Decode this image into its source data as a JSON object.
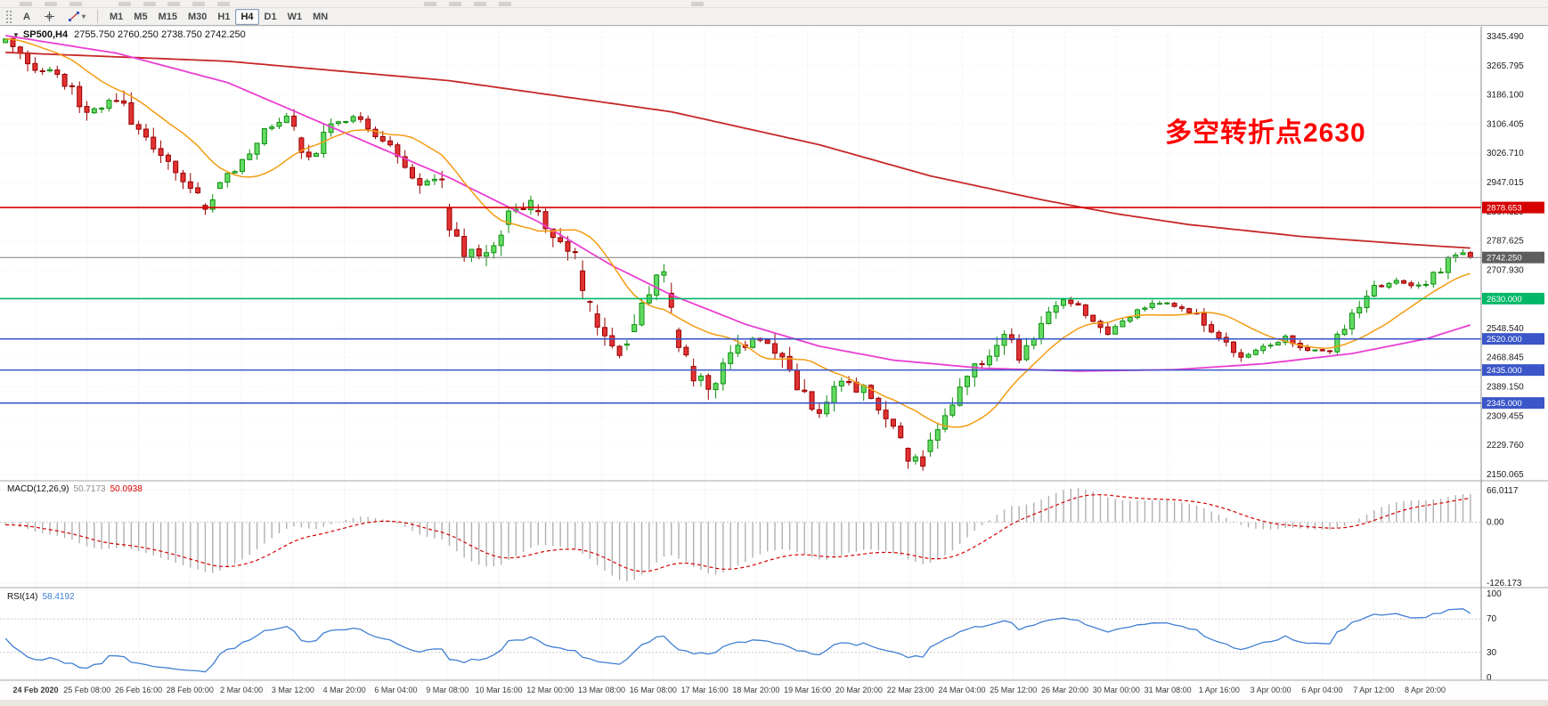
{
  "toolbar": {
    "font_button": "A",
    "dropdown_caret": "▾",
    "timeframes": [
      "M1",
      "M5",
      "M15",
      "M30",
      "H1",
      "H4",
      "D1",
      "W1",
      "MN"
    ],
    "active_timeframe": "H4"
  },
  "chart": {
    "collapse_triangle": "▼",
    "title": "SP500,H4",
    "ohlc": "2755.750 2760.250 2738.750 2742.250",
    "annotation": {
      "text": "多空转折点2630",
      "color": "#FF0000"
    },
    "price_axis": [
      "3345.490",
      "3265.795",
      "3186.100",
      "3106.405",
      "3026.710",
      "2947.015",
      "2867.320",
      "2787.625",
      "2707.930",
      "2628.235",
      "2548.540",
      "2468.845",
      "2389.150",
      "2309.455",
      "2229.760",
      "2150.065"
    ],
    "hlines": [
      {
        "price": 2878.653,
        "label": "2878.653",
        "color": "#D60000"
      },
      {
        "price": 2630.0,
        "label": "2630.000",
        "color": "#00B868"
      },
      {
        "price": 2520.0,
        "label": "2520.000",
        "color": "#3A56C8"
      },
      {
        "price": 2435.0,
        "label": "2435.000",
        "color": "#3A56C8"
      },
      {
        "price": 2345.0,
        "label": "2345.000",
        "color": "#3A56C8"
      }
    ],
    "current_price": {
      "value": 2742.25,
      "label": "2742.250",
      "line_color": "#808080",
      "tag_color": "#5E5E5E"
    },
    "time_axis": [
      "24 Feb 2020",
      "25 Feb 08:00",
      "26 Feb 16:00",
      "28 Feb 00:00",
      "2 Mar 04:00",
      "3 Mar 12:00",
      "4 Mar 20:00",
      "6 Mar 04:00",
      "9 Mar 08:00",
      "10 Mar 16:00",
      "12 Mar 00:00",
      "13 Mar 08:00",
      "16 Mar 08:00",
      "17 Mar 16:00",
      "18 Mar 20:00",
      "19 Mar 16:00",
      "20 Mar 20:00",
      "22 Mar 23:00",
      "24 Mar 04:00",
      "25 Mar 12:00",
      "26 Mar 20:00",
      "30 Mar 00:00",
      "31 Mar 08:00",
      "1 Apr 16:00",
      "3 Apr 00:00",
      "6 Apr 04:00",
      "7 Apr 12:00",
      "8 Apr 20:00"
    ]
  },
  "macd": {
    "label": "MACD(12,26,9)",
    "main_value": "50.7173",
    "signal_value": "50.0938",
    "axis": [
      "66.0117",
      "0.00",
      "-126.173"
    ]
  },
  "rsi": {
    "label": "RSI(14)",
    "value": "58.4192",
    "axis": [
      "100",
      "70",
      "30",
      "0"
    ],
    "levels": [
      70,
      30
    ]
  },
  "chart_data": {
    "type": "candlestick",
    "symbol": "SP500",
    "timeframe": "H4",
    "bars": 199,
    "seed": 20200408,
    "price_range": [
      2140,
      3365
    ],
    "last_candle": {
      "open": 2755.75,
      "high": 2760.25,
      "low": 2738.75,
      "close": 2742.25
    },
    "close_waypoints": [
      [
        0,
        3335
      ],
      [
        2,
        3305
      ],
      [
        5,
        3245
      ],
      [
        7,
        3255
      ],
      [
        11,
        3135
      ],
      [
        13,
        3160
      ],
      [
        15,
        3182
      ],
      [
        17,
        3120
      ],
      [
        20,
        3045
      ],
      [
        23,
        2980
      ],
      [
        26,
        2900
      ],
      [
        27,
        2862
      ],
      [
        29,
        2952
      ],
      [
        32,
        3005
      ],
      [
        35,
        3088
      ],
      [
        38,
        3132
      ],
      [
        41,
        3005
      ],
      [
        44,
        3098
      ],
      [
        47,
        3128
      ],
      [
        50,
        3078
      ],
      [
        53,
        3022
      ],
      [
        56,
        2948
      ],
      [
        59,
        2970
      ],
      [
        60,
        2825
      ],
      [
        62,
        2762
      ],
      [
        65,
        2747
      ],
      [
        68,
        2852
      ],
      [
        71,
        2880
      ],
      [
        74,
        2798
      ],
      [
        77,
        2742
      ],
      [
        79,
        2602
      ],
      [
        81,
        2532
      ],
      [
        83,
        2481
      ],
      [
        85,
        2562
      ],
      [
        88,
        2684
      ],
      [
        89,
        2709
      ],
      [
        91,
        2502
      ],
      [
        93,
        2424
      ],
      [
        95,
        2388
      ],
      [
        98,
        2462
      ],
      [
        101,
        2528
      ],
      [
        104,
        2478
      ],
      [
        107,
        2400
      ],
      [
        110,
        2322
      ],
      [
        113,
        2408
      ],
      [
        116,
        2378
      ],
      [
        119,
        2306
      ],
      [
        121,
        2242
      ],
      [
        122,
        2202
      ],
      [
        124,
        2192
      ],
      [
        125,
        2239
      ],
      [
        128,
        2342
      ],
      [
        131,
        2448
      ],
      [
        134,
        2492
      ],
      [
        135,
        2538
      ],
      [
        137,
        2476
      ],
      [
        140,
        2558
      ],
      [
        143,
        2628
      ],
      [
        146,
        2592
      ],
      [
        149,
        2542
      ],
      [
        152,
        2582
      ],
      [
        155,
        2624
      ],
      [
        158,
        2610
      ],
      [
        161,
        2586
      ],
      [
        164,
        2522
      ],
      [
        167,
        2472
      ],
      [
        170,
        2502
      ],
      [
        173,
        2524
      ],
      [
        176,
        2492
      ],
      [
        179,
        2489
      ],
      [
        182,
        2582
      ],
      [
        185,
        2660
      ],
      [
        188,
        2678
      ],
      [
        191,
        2660
      ],
      [
        194,
        2712
      ],
      [
        196,
        2752
      ],
      [
        197,
        2758
      ],
      [
        198,
        2742.25
      ]
    ],
    "overlays": [
      {
        "name": "ma-slow-red",
        "color": "#C62828",
        "points": [
          [
            0,
            3302
          ],
          [
            30,
            3278
          ],
          [
            60,
            3225
          ],
          [
            90,
            3140
          ],
          [
            110,
            3050
          ],
          [
            125,
            2965
          ],
          [
            140,
            2900
          ],
          [
            150,
            2862
          ],
          [
            160,
            2832
          ],
          [
            175,
            2800
          ],
          [
            190,
            2778
          ],
          [
            198,
            2768
          ]
        ]
      },
      {
        "name": "ma-medium-magenta",
        "color": "#E93ED2",
        "points": [
          [
            0,
            3348
          ],
          [
            15,
            3300
          ],
          [
            30,
            3220
          ],
          [
            45,
            3090
          ],
          [
            60,
            2960
          ],
          [
            72,
            2840
          ],
          [
            82,
            2720
          ],
          [
            90,
            2640
          ],
          [
            100,
            2560
          ],
          [
            110,
            2500
          ],
          [
            120,
            2462
          ],
          [
            132,
            2440
          ],
          [
            145,
            2432
          ],
          [
            158,
            2436
          ],
          [
            170,
            2452
          ],
          [
            182,
            2480
          ],
          [
            192,
            2520
          ],
          [
            198,
            2558
          ]
        ]
      },
      {
        "name": "ma-fast-orange",
        "color": "#F39C12",
        "period": 13
      }
    ],
    "indicator_colors": {
      "macd_histogram": "#B0B0B0",
      "macd_signal": "#D40000",
      "rsi_line": "#3F7FD4"
    },
    "candle_colors": {
      "up_fill": "#63DB63",
      "up_border": "#0F8F0F",
      "down_fill": "#E23232",
      "down_border": "#990000"
    }
  }
}
